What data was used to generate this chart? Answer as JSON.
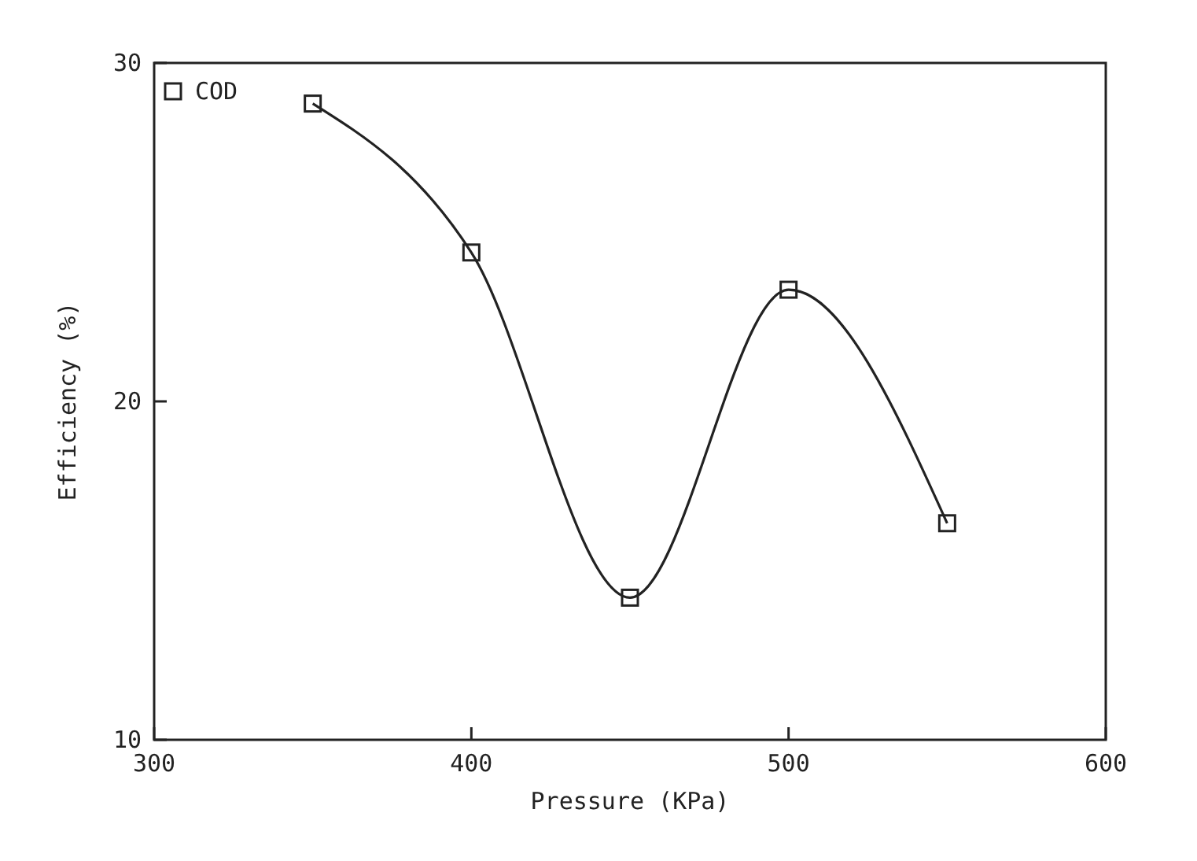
{
  "chart_data": {
    "type": "line",
    "xlabel": "Pressure (KPa)",
    "ylabel": "Efficiency (%)",
    "x": [
      350,
      400,
      450,
      500,
      550
    ],
    "series": [
      {
        "name": "COD",
        "color": "#222222",
        "values": [
          28.8,
          24.4,
          14.2,
          23.3,
          16.4
        ]
      }
    ],
    "xlim": [
      300,
      600
    ],
    "xticks": [
      300,
      400,
      500,
      600
    ],
    "ylim": [
      10,
      30
    ],
    "yticks": [
      10,
      20,
      30
    ],
    "marker": "square",
    "line_style": "solid",
    "legend": "top left",
    "grid": false
  }
}
